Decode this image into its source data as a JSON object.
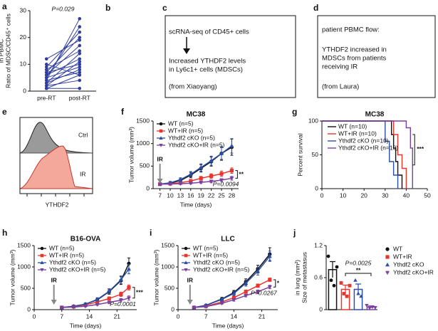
{
  "panel_labels": [
    "a",
    "b",
    "c",
    "d",
    "e",
    "f",
    "g",
    "h",
    "i",
    "j"
  ],
  "boxes": [
    {
      "lines": [
        "scRNA-seq of CD45+ cells",
        "Increased YTHDF2 levels",
        "in Ly6c1+ cells (MDSCs)",
        "(from Xiaoyang)"
      ]
    },
    {
      "lines": [
        "patient PBMC flow:",
        "YTHDF2 increased in",
        "MDSCs from patients",
        "receiving IR",
        "(from Laura)"
      ]
    }
  ],
  "histogram": {
    "labels": [
      "Ctrl",
      "IR"
    ],
    "xlabel": "YTHDF2"
  },
  "chart_data": [
    {
      "type": "paired",
      "ylabel": [
        "Ratio of MDSC/CD45⁺ cells",
        "in PBMC"
      ],
      "categories": [
        "pre-RT",
        "post-RT"
      ],
      "color": "#2f3e9e",
      "pairs": [
        [
          1,
          6
        ],
        [
          2,
          4
        ],
        [
          3,
          8
        ],
        [
          4,
          27
        ],
        [
          5,
          24
        ],
        [
          6,
          12
        ],
        [
          7,
          10
        ],
        [
          8,
          15
        ],
        [
          9,
          22
        ],
        [
          10,
          6
        ],
        [
          12,
          19
        ],
        [
          5,
          9
        ],
        [
          3,
          14
        ],
        [
          6,
          17
        ],
        [
          2,
          11
        ],
        [
          7,
          20
        ],
        [
          1,
          1
        ],
        [
          4,
          7
        ]
      ],
      "ylim": [
        0,
        30
      ],
      "yticks": [
        0,
        10,
        20,
        30
      ],
      "annotations": [
        "P=0.029"
      ]
    },
    {
      "type": "line",
      "title": "MC38",
      "xlabel": "Time (days)",
      "ylabel": [
        "Tumor volume (mm³)"
      ],
      "x": [
        7,
        10,
        13,
        16,
        19,
        22,
        25,
        28
      ],
      "xlim": [
        5,
        30
      ],
      "xticks": [
        7,
        10,
        13,
        16,
        19,
        22,
        25,
        28
      ],
      "ylim": [
        0,
        1500
      ],
      "yticks": [
        0,
        500,
        1000,
        1500
      ],
      "series": [
        {
          "name": "WT (n=5)",
          "color": "#111111",
          "marker": "circle",
          "values": [
            100,
            120,
            180,
            300,
            450,
            600,
            780,
            920
          ],
          "errors": [
            20,
            30,
            40,
            60,
            80,
            100,
            150,
            180
          ]
        },
        {
          "name": "WT+IR (n=5)",
          "color": "#e8352e",
          "marker": "square",
          "values": [
            100,
            110,
            130,
            170,
            230,
            280,
            330,
            400
          ],
          "errors": [
            15,
            20,
            25,
            30,
            40,
            50,
            60,
            60
          ]
        },
        {
          "name": "Ythdf2 cKO (n=5)",
          "color": "#2b4fa8",
          "marker": "triangle",
          "values": [
            100,
            130,
            200,
            320,
            470,
            620,
            780,
            950
          ],
          "errors": [
            20,
            30,
            40,
            60,
            80,
            100,
            130,
            160
          ]
        },
        {
          "name": "Ythdf2 cKO+IR (n=5)",
          "color": "#7b3fa0",
          "marker": "down",
          "values": [
            100,
            100,
            110,
            120,
            140,
            160,
            190,
            230
          ],
          "errors": [
            15,
            15,
            20,
            20,
            25,
            30,
            30,
            40
          ]
        }
      ],
      "annotations": [
        {
          "text": "IR",
          "x": 7
        },
        "**",
        "P=0.0094"
      ]
    },
    {
      "type": "survival",
      "title": "MC38",
      "ylabel": [
        "Percent survival"
      ],
      "xlim": [
        0,
        50
      ],
      "xticks": [
        0,
        10,
        20,
        30,
        40,
        50
      ],
      "ylim": [
        0,
        100
      ],
      "yticks": [
        0,
        50,
        100
      ],
      "series": [
        {
          "name": "WT (n=10)",
          "color": "#111111",
          "x": [
            0,
            33,
            34,
            35,
            36,
            38
          ],
          "values": [
            100,
            80,
            60,
            40,
            20,
            0
          ]
        },
        {
          "name": "WT+IR (n=10)",
          "color": "#e8352e",
          "x": [
            0,
            34,
            36,
            38,
            40
          ],
          "values": [
            100,
            80,
            50,
            30,
            0
          ]
        },
        {
          "name": "Ythdf2 cKO (n=10)",
          "color": "#2b4fa8",
          "x": [
            0,
            30,
            32,
            34,
            36
          ],
          "values": [
            100,
            70,
            40,
            20,
            0
          ]
        },
        {
          "name": "Ythdf2 cKO+IR (n=10)",
          "color": "#7b3fa0",
          "x": [
            0,
            40,
            42,
            43
          ],
          "values": [
            100,
            90,
            60,
            0
          ]
        }
      ],
      "annotations": [
        "***"
      ]
    },
    {
      "type": "line",
      "title": "B16-OVA",
      "xlabel": "Time (days)",
      "ylabel": [
        "Tumor volume (mm³)"
      ],
      "x": [
        7,
        10,
        13,
        16,
        19,
        22,
        24
      ],
      "xlim": [
        0,
        26
      ],
      "xticks": [
        0,
        7,
        14,
        21
      ],
      "ylim": [
        0,
        1500
      ],
      "yticks": [
        0,
        500,
        1000,
        1500
      ],
      "series": [
        {
          "name": "WT (n=5)",
          "color": "#111111",
          "marker": "circle",
          "values": [
            50,
            80,
            130,
            230,
            420,
            680,
            1080
          ],
          "errors": [
            10,
            15,
            20,
            40,
            60,
            90,
            130
          ]
        },
        {
          "name": "WT+IR (n=5)",
          "color": "#e8352e",
          "marker": "square",
          "values": [
            50,
            70,
            110,
            180,
            260,
            360,
            520
          ],
          "errors": [
            10,
            15,
            20,
            30,
            40,
            50,
            60
          ]
        },
        {
          "name": "Ythdf2 cKO (n=5)",
          "color": "#2b4fa8",
          "marker": "triangle",
          "values": [
            50,
            80,
            130,
            240,
            430,
            700,
            950
          ],
          "errors": [
            10,
            15,
            20,
            40,
            60,
            90,
            110
          ]
        },
        {
          "name": "Ythdf2 cKO+IR (n=5)",
          "color": "#7b3fa0",
          "marker": "down",
          "values": [
            50,
            60,
            80,
            120,
            170,
            220,
            270
          ],
          "errors": [
            10,
            10,
            15,
            20,
            30,
            40,
            50
          ]
        }
      ],
      "annotations": [
        {
          "text": "IR",
          "x": 5
        },
        "***",
        "P=0.0001"
      ]
    },
    {
      "type": "line",
      "title": "LLC",
      "xlabel": "Time (days)",
      "ylabel": [
        "Tumor volume (mm³)"
      ],
      "x": [
        4,
        7,
        11,
        14,
        17,
        20,
        23
      ],
      "xlim": [
        0,
        25
      ],
      "xticks": [
        0,
        7,
        14,
        21
      ],
      "ylim": [
        0,
        1500
      ],
      "yticks": [
        0,
        500,
        1000,
        1500
      ],
      "series": [
        {
          "name": "WT (n=5)",
          "color": "#111111",
          "marker": "circle",
          "values": [
            50,
            100,
            250,
            400,
            650,
            950,
            1300
          ],
          "errors": [
            10,
            20,
            40,
            50,
            70,
            90,
            150
          ]
        },
        {
          "name": "WT+IR (n=5)",
          "color": "#e8352e",
          "marker": "square",
          "values": [
            50,
            80,
            180,
            280,
            420,
            560,
            700
          ],
          "errors": [
            10,
            15,
            25,
            30,
            40,
            40,
            40
          ]
        },
        {
          "name": "Ythdf2 cKO (n=5)",
          "color": "#2b4fa8",
          "marker": "triangle",
          "values": [
            50,
            100,
            240,
            380,
            620,
            900,
            1250
          ],
          "errors": [
            10,
            20,
            40,
            50,
            70,
            90,
            120
          ]
        },
        {
          "name": "Ythdf2 cKO+IR (n=5)",
          "color": "#7b3fa0",
          "marker": "down",
          "values": [
            50,
            70,
            150,
            230,
            330,
            420,
            530
          ],
          "errors": [
            10,
            15,
            20,
            30,
            30,
            40,
            40
          ]
        }
      ],
      "annotations": [
        {
          "text": "IR",
          "x": 3
        },
        "*",
        "P=0.0267"
      ]
    },
    {
      "type": "bardot",
      "ylabel": [
        "Size of metastasus",
        "in lung (mm²)"
      ],
      "ylim": [
        0,
        1.2
      ],
      "yticks": [
        0,
        0.6,
        1.2
      ],
      "series": [
        {
          "name": "WT",
          "color": "#111111",
          "marker": "circle",
          "value": 0.75,
          "error": 0.15,
          "points": [
            1.0,
            0.55,
            0.45,
            0.8
          ]
        },
        {
          "name": "WT+IR",
          "color": "#e8352e",
          "marker": "square",
          "value": 0.38,
          "error": 0.08,
          "points": [
            0.5,
            0.3,
            0.25,
            0.45
          ]
        },
        {
          "name": "Ythdf2 cKO",
          "color": "#2b4fa8",
          "marker": "triangle",
          "value": 0.38,
          "error": 0.1,
          "points": [
            0.55,
            0.3,
            0.25
          ]
        },
        {
          "name": "Ythdf2 cKO+IR",
          "color": "#7b3fa0",
          "marker": "down",
          "value": 0.05,
          "error": 0.02,
          "points": [
            0.08,
            0.03,
            0.05,
            0.04
          ]
        }
      ],
      "annotations": [
        "P=0.0025",
        "**"
      ]
    }
  ]
}
